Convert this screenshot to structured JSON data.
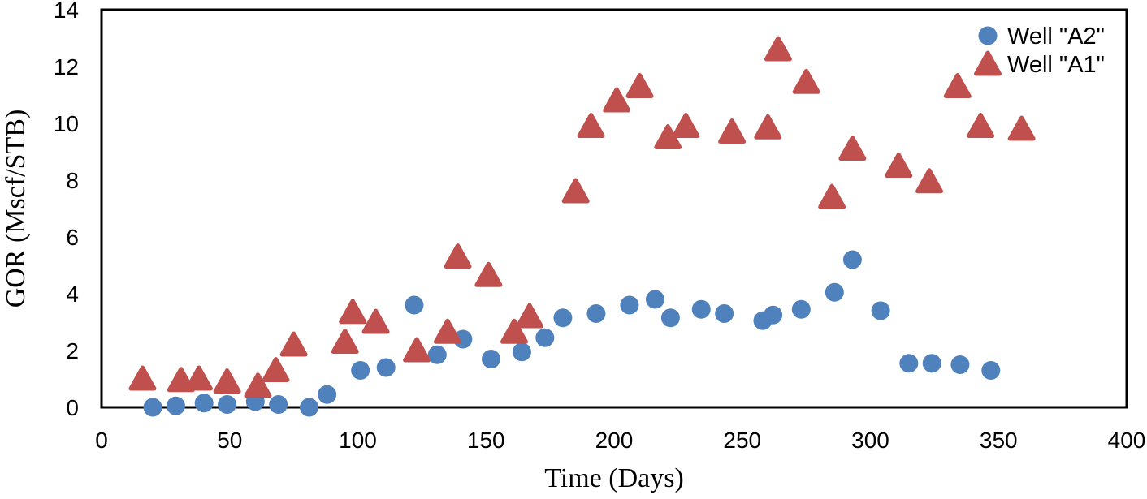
{
  "figure": {
    "background": "#ffffff",
    "frame_color": "#000000",
    "series_colors": {
      "well_a2": "#4F81BD",
      "well_a1": "#C0504D"
    }
  },
  "chart_data": {
    "type": "scatter",
    "title": "",
    "xlabel": "Time (Days)",
    "ylabel": "GOR (Mscf/STB)",
    "xlim": [
      0,
      400
    ],
    "ylim": [
      0,
      14
    ],
    "xticks": [
      0,
      50,
      100,
      150,
      200,
      250,
      300,
      350,
      400
    ],
    "yticks": [
      0,
      2,
      4,
      6,
      8,
      10,
      12,
      14
    ],
    "grid": false,
    "legend_position": "top-right-inside",
    "series": [
      {
        "name": "Well \"A2\"",
        "marker": "circle",
        "color": "#4F81BD",
        "points": [
          [
            20,
            0.0
          ],
          [
            29,
            0.05
          ],
          [
            40,
            0.15
          ],
          [
            49,
            0.1
          ],
          [
            60,
            0.2
          ],
          [
            69,
            0.1
          ],
          [
            81,
            0.0
          ],
          [
            88,
            0.45
          ],
          [
            101,
            1.3
          ],
          [
            111,
            1.4
          ],
          [
            122,
            3.6
          ],
          [
            131,
            1.85
          ],
          [
            141,
            2.4
          ],
          [
            152,
            1.7
          ],
          [
            164,
            1.95
          ],
          [
            173,
            2.45
          ],
          [
            180,
            3.15
          ],
          [
            193,
            3.3
          ],
          [
            206,
            3.6
          ],
          [
            216,
            3.8
          ],
          [
            222,
            3.15
          ],
          [
            234,
            3.45
          ],
          [
            243,
            3.3
          ],
          [
            258,
            3.05
          ],
          [
            262,
            3.25
          ],
          [
            273,
            3.45
          ],
          [
            286,
            4.05
          ],
          [
            293,
            5.2
          ],
          [
            304,
            3.4
          ],
          [
            315,
            1.55
          ],
          [
            324,
            1.55
          ],
          [
            335,
            1.5
          ],
          [
            347,
            1.3
          ]
        ]
      },
      {
        "name": "Well \"A1\"",
        "marker": "triangle",
        "color": "#C0504D",
        "points": [
          [
            16,
            1.0
          ],
          [
            31,
            0.95
          ],
          [
            38,
            1.0
          ],
          [
            49,
            0.9
          ],
          [
            61,
            0.75
          ],
          [
            68,
            1.3
          ],
          [
            75,
            2.2
          ],
          [
            95,
            2.3
          ],
          [
            98,
            3.35
          ],
          [
            107,
            3.0
          ],
          [
            123,
            2.0
          ],
          [
            135,
            2.65
          ],
          [
            139,
            5.3
          ],
          [
            151,
            4.65
          ],
          [
            161,
            2.65
          ],
          [
            167,
            3.2
          ],
          [
            185,
            7.6
          ],
          [
            191,
            9.9
          ],
          [
            201,
            10.8
          ],
          [
            210,
            11.3
          ],
          [
            221,
            9.5
          ],
          [
            228,
            9.9
          ],
          [
            246,
            9.7
          ],
          [
            260,
            9.85
          ],
          [
            264,
            12.6
          ],
          [
            275,
            11.45
          ],
          [
            285,
            7.4
          ],
          [
            293,
            9.1
          ],
          [
            311,
            8.5
          ],
          [
            323,
            7.95
          ],
          [
            334,
            11.3
          ],
          [
            343,
            9.9
          ],
          [
            359,
            9.8
          ]
        ]
      }
    ]
  }
}
